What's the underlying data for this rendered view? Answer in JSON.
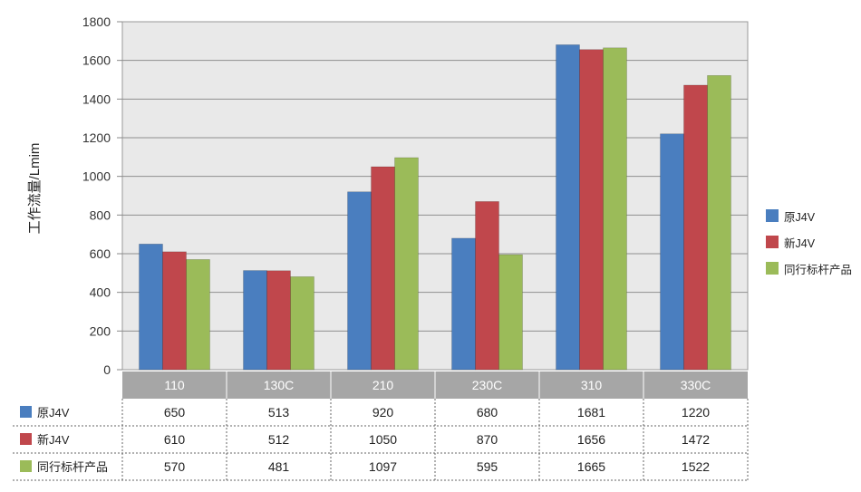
{
  "chart_data": {
    "type": "bar",
    "title": "",
    "xlabel": "",
    "ylabel": "工作流量/Lmim",
    "ylim": [
      0,
      1800
    ],
    "yticks": [
      "0",
      "200",
      "400",
      "600",
      "800",
      "1000",
      "1200",
      "1400",
      "1600",
      "1800"
    ],
    "categories": [
      "110",
      "130C",
      "210",
      "230C",
      "310",
      "330C"
    ],
    "series": [
      {
        "name": "原J4V",
        "color": "#4a7ebf",
        "values": [
          650,
          513,
          920,
          680,
          1681,
          1220
        ]
      },
      {
        "name": "新J4V",
        "color": "#c0474c",
        "values": [
          610,
          512,
          1050,
          870,
          1656,
          1472
        ]
      },
      {
        "name": "同行标杆产品",
        "color": "#9bbb59",
        "values": [
          570,
          481,
          1097,
          595,
          1665,
          1522
        ]
      }
    ],
    "grid": true,
    "legend_position": "right",
    "data_table": true
  }
}
